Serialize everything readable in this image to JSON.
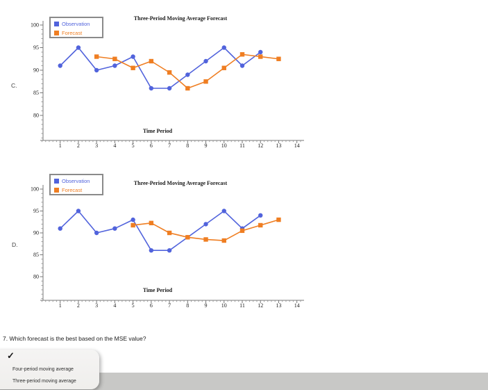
{
  "question": {
    "text": "7. Which forecast is the best based on the MSE value?"
  },
  "dropdown": {
    "checkmark": "✓",
    "options": [
      "Four-period moving average",
      "Three-period moving average"
    ]
  },
  "colors": {
    "observation": "#5163DC",
    "forecast": "#EF7E22",
    "legend_border": "#8A8A8A",
    "bottom_bar": "#C8C8C6",
    "panel": "#F2F1EF",
    "axis": "#777777"
  },
  "chart_data": [
    {
      "id": "C",
      "side_label": "C.",
      "type": "line",
      "title": "Three-Period Moving Average Forecast",
      "xlabel": "Time Period",
      "ylabel": "",
      "x_ticks": [
        1,
        2,
        3,
        4,
        5,
        6,
        7,
        8,
        9,
        10,
        11,
        12,
        13,
        14
      ],
      "y_ticks": [
        80,
        85,
        90,
        95,
        100
      ],
      "ylim": [
        74.5,
        100
      ],
      "xlim": [
        0,
        14.4
      ],
      "grid": false,
      "legend_position": "top-left",
      "series": [
        {
          "name": "Observation",
          "marker": "circle",
          "color": "#5163DC",
          "x": [
            1,
            2,
            3,
            4,
            5,
            6,
            7,
            8,
            9,
            10,
            11,
            12
          ],
          "y": [
            91,
            95,
            90,
            91,
            93,
            86,
            86,
            89,
            92,
            95,
            91,
            94
          ]
        },
        {
          "name": "Forecast",
          "marker": "square",
          "color": "#EF7E22",
          "x": [
            3,
            4,
            5,
            6,
            7,
            8,
            9,
            10,
            11,
            12,
            13
          ],
          "y": [
            93,
            92.5,
            90.5,
            92,
            89.5,
            86,
            87.5,
            90.5,
            93.5,
            93,
            92.5
          ]
        }
      ]
    },
    {
      "id": "D",
      "side_label": "D.",
      "type": "line",
      "title": "Three-Period Moving Average Forecast",
      "xlabel": "Time Period",
      "ylabel": "",
      "x_ticks": [
        1,
        2,
        3,
        4,
        5,
        6,
        7,
        8,
        9,
        10,
        11,
        12,
        13,
        14
      ],
      "y_ticks": [
        80,
        85,
        90,
        95,
        100
      ],
      "ylim": [
        74.6,
        100
      ],
      "xlim": [
        0,
        14.4
      ],
      "grid": false,
      "legend_position": "top-left",
      "series": [
        {
          "name": "Observation",
          "marker": "circle",
          "color": "#5163DC",
          "x": [
            1,
            2,
            3,
            4,
            5,
            6,
            7,
            8,
            9,
            10,
            11,
            12
          ],
          "y": [
            91,
            95,
            90,
            91,
            93,
            86,
            86,
            89,
            92,
            95,
            91,
            94
          ]
        },
        {
          "name": "Forecast",
          "marker": "square",
          "color": "#EF7E22",
          "x": [
            5,
            6,
            7,
            8,
            9,
            10,
            11,
            12,
            13
          ],
          "y": [
            91.75,
            92.25,
            90,
            89,
            88.5,
            88.25,
            90.5,
            91.75,
            93
          ]
        }
      ]
    }
  ]
}
